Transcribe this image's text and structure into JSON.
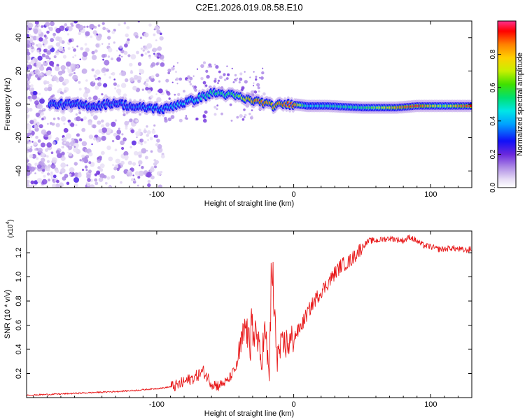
{
  "title": "C2E1.2026.019.08.58.E10",
  "chart_data": [
    {
      "type": "heatmap",
      "name": "spectrogram",
      "xlabel": "Height of straight line (km)",
      "ylabel": "Frequency (Hz)",
      "xlim": [
        -195,
        130
      ],
      "ylim": [
        -50,
        50
      ],
      "x_ticks": [
        -100,
        0,
        100
      ],
      "x_tick_labels": [
        "-100",
        "0",
        "100"
      ],
      "y_ticks": [
        -40,
        -20,
        0,
        20,
        40
      ],
      "y_tick_labels": [
        "-40",
        "-20",
        "0",
        "20",
        "40"
      ],
      "colorbar": {
        "label": "Normalized spectral amplitude",
        "range": [
          0,
          1
        ],
        "ticks": [
          0.0,
          0.2,
          0.4,
          0.6,
          0.8
        ],
        "tick_labels": [
          "0.0",
          "0.2",
          "0.4",
          "0.6",
          "0.8"
        ],
        "colors": [
          "#ffffff",
          "#d9c8f0",
          "#8a4ce0",
          "#5a22dd",
          "#0a0afa",
          "#00a8ff",
          "#00e0e0",
          "#00e070",
          "#38e000",
          "#c8f000",
          "#ffd000",
          "#ff8000",
          "#ff0000",
          "#ff3080"
        ]
      },
      "ridge": {
        "x": [
          -175,
          -160,
          -145,
          -130,
          -115,
          -105,
          -95,
          -85,
          -75,
          -65,
          -58,
          -50,
          -42,
          -35,
          -28,
          -22,
          -15,
          -8,
          0,
          10,
          25,
          50,
          75,
          90,
          100,
          110,
          120,
          130
        ],
        "y": [
          0,
          0,
          -1,
          1,
          -2,
          -2,
          -3,
          0,
          2,
          5,
          7,
          6,
          5,
          3,
          2,
          1,
          -1,
          0,
          0,
          -1,
          -1,
          -2,
          -2,
          -1,
          -1,
          -1,
          -1,
          -1
        ],
        "amplitude": [
          0.35,
          0.35,
          0.35,
          0.35,
          0.35,
          0.4,
          0.4,
          0.45,
          0.45,
          0.5,
          0.55,
          0.55,
          0.6,
          0.8,
          0.9,
          0.9,
          0.85,
          0.9,
          0.95,
          0.45,
          0.5,
          0.55,
          0.85,
          0.95,
          0.8,
          0.65,
          0.85,
          0.95
        ]
      }
    },
    {
      "type": "line",
      "name": "snr",
      "xlabel": "Height of straight line (km)",
      "ylabel": "SNR (10 * v/v)",
      "scale_label": "(x10",
      "scale_exponent": "4",
      "scale_close": ")",
      "xlim": [
        -195,
        130
      ],
      "ylim": [
        0,
        1.38
      ],
      "x_ticks": [
        -100,
        0,
        100
      ],
      "x_tick_labels": [
        "-100",
        "0",
        "100"
      ],
      "y_ticks": [
        0.2,
        0.4,
        0.6,
        0.8,
        1.0,
        1.2
      ],
      "y_tick_labels": [
        "0.2",
        "0.4",
        "0.6",
        "0.8",
        "1.0",
        "1.2"
      ],
      "color": "#e8191a",
      "series": [
        {
          "name": "SNR",
          "x": [
            -195,
            -170,
            -150,
            -130,
            -115,
            -105,
            -95,
            -85,
            -78,
            -72,
            -66,
            -60,
            -55,
            -48,
            -42,
            -38,
            -35,
            -32,
            -28,
            -24,
            -21,
            -18,
            -16,
            -14,
            -12,
            -9,
            -6,
            -3,
            0,
            5,
            10,
            15,
            20,
            25,
            30,
            35,
            40,
            45,
            50,
            55,
            60,
            65,
            70,
            75,
            80,
            85,
            88,
            92,
            95,
            100,
            105,
            110,
            115,
            120,
            125,
            130
          ],
          "y": [
            0.02,
            0.03,
            0.04,
            0.05,
            0.06,
            0.07,
            0.08,
            0.1,
            0.14,
            0.17,
            0.22,
            0.12,
            0.1,
            0.14,
            0.25,
            0.45,
            0.6,
            0.4,
            0.58,
            0.3,
            0.55,
            0.2,
            0.95,
            0.65,
            0.35,
            0.4,
            0.45,
            0.45,
            0.5,
            0.58,
            0.7,
            0.8,
            0.88,
            0.95,
            1.03,
            1.1,
            1.12,
            1.18,
            1.25,
            1.3,
            1.3,
            1.31,
            1.32,
            1.31,
            1.3,
            1.33,
            1.31,
            1.28,
            1.26,
            1.25,
            1.23,
            1.23,
            1.24,
            1.23,
            1.22,
            1.23
          ]
        }
      ]
    }
  ]
}
